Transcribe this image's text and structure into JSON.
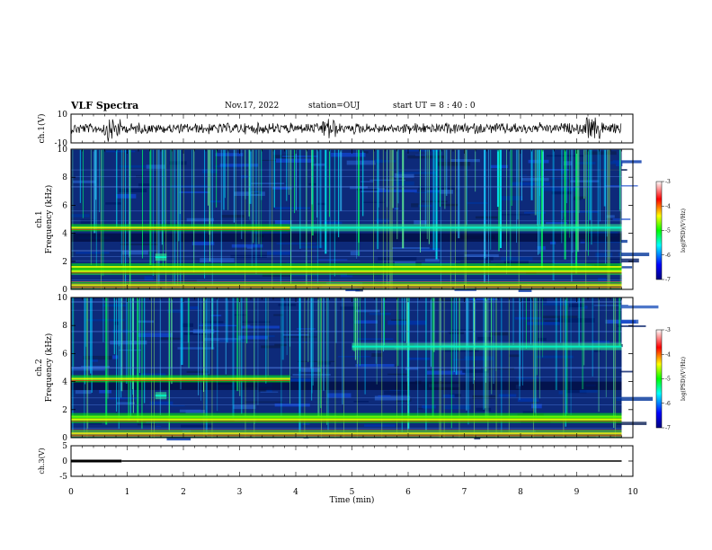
{
  "header": {
    "title": "VLF Spectra",
    "date": "Nov.17, 2022",
    "station": "station=OUJ",
    "start": "start  UT =   8 : 40 : 0"
  },
  "chart_data": [
    {
      "type": "line",
      "panel": "waveform-ch1",
      "ylabel": "ch.1(V)",
      "ylim": [
        -10,
        10
      ],
      "y_ticks": [
        "10",
        "-10"
      ],
      "description_level": 0.0,
      "color": "#000000"
    },
    {
      "type": "heatmap",
      "panel": "spectrogram-ch1",
      "ylabel": "ch.1\nFrequency (kHz)",
      "ylabel_lines": [
        "ch.1",
        "Frequency (kHz)"
      ],
      "ylim": [
        0,
        10
      ],
      "y_ticks": [
        "0",
        "2",
        "4",
        "6",
        "8",
        "10"
      ],
      "colorbar": {
        "label": "log(PSD)(V²/Hz)",
        "range": [
          -7,
          -3
        ],
        "ticks": [
          "-3",
          "-4",
          "-5",
          "-6",
          "-7"
        ],
        "colors": [
          "#00007f",
          "#0000ff",
          "#00ffff",
          "#00ff00",
          "#ffff00",
          "#ff0000",
          "#ffffff"
        ]
      },
      "bands_khz": [
        {
          "f": 4.4,
          "t": [
            0,
            3.9
          ],
          "level": "high"
        },
        {
          "f": 4.4,
          "t": [
            3.9,
            9.8
          ],
          "level": "mid"
        },
        {
          "f": 1.6,
          "t": [
            0,
            9.8
          ],
          "level": "high"
        },
        {
          "f": 1.3,
          "t": [
            0,
            9.8
          ],
          "level": "high"
        },
        {
          "f": 0.3,
          "t": [
            0,
            9.8
          ],
          "level": "high"
        },
        {
          "f": 2.3,
          "t": [
            1.5,
            1.7
          ],
          "level": "mid"
        }
      ]
    },
    {
      "type": "heatmap",
      "panel": "spectrogram-ch2",
      "ylabel": "ch.2\nFrequency (kHz)",
      "ylabel_lines": [
        "ch.2",
        "Frequency (kHz)"
      ],
      "ylim": [
        0,
        10
      ],
      "y_ticks": [
        "0",
        "2",
        "4",
        "6",
        "8",
        "10"
      ],
      "colorbar": {
        "label": "log(PSD)(V²/Hz)",
        "range": [
          -7,
          -3
        ],
        "ticks": [
          "-3",
          "-4",
          "-5",
          "-6",
          "-7"
        ],
        "colors": [
          "#00007f",
          "#0000ff",
          "#00ffff",
          "#00ff00",
          "#ffff00",
          "#ff0000",
          "#ffffff"
        ]
      },
      "bands_khz": [
        {
          "f": 4.2,
          "t": [
            0,
            3.9
          ],
          "level": "high"
        },
        {
          "f": 6.5,
          "t": [
            5.0,
            9.8
          ],
          "level": "mid"
        },
        {
          "f": 1.5,
          "t": [
            0,
            9.8
          ],
          "level": "high"
        },
        {
          "f": 1.3,
          "t": [
            0,
            9.8
          ],
          "level": "high"
        },
        {
          "f": 0.3,
          "t": [
            0,
            9.8
          ],
          "level": "high"
        },
        {
          "f": 3.0,
          "t": [
            1.5,
            1.7
          ],
          "level": "mid"
        }
      ]
    },
    {
      "type": "line",
      "panel": "trace-ch3",
      "ylabel": "ch.3(V)",
      "ylim": [
        -5,
        5
      ],
      "y_ticks": [
        "5",
        "0",
        "-5"
      ],
      "segments": [
        {
          "t": [
            0,
            0.9
          ],
          "y": 0.0,
          "width": "thick"
        },
        {
          "t": [
            0.9,
            9.8
          ],
          "y": 0.0,
          "width": "thin"
        }
      ],
      "color": "#000000"
    }
  ],
  "x_axis": {
    "label": "Time (min)",
    "range": [
      0,
      10
    ],
    "ticks": [
      "0",
      "1",
      "2",
      "3",
      "4",
      "5",
      "6",
      "7",
      "8",
      "9",
      "10"
    ],
    "data_end": 9.8
  }
}
